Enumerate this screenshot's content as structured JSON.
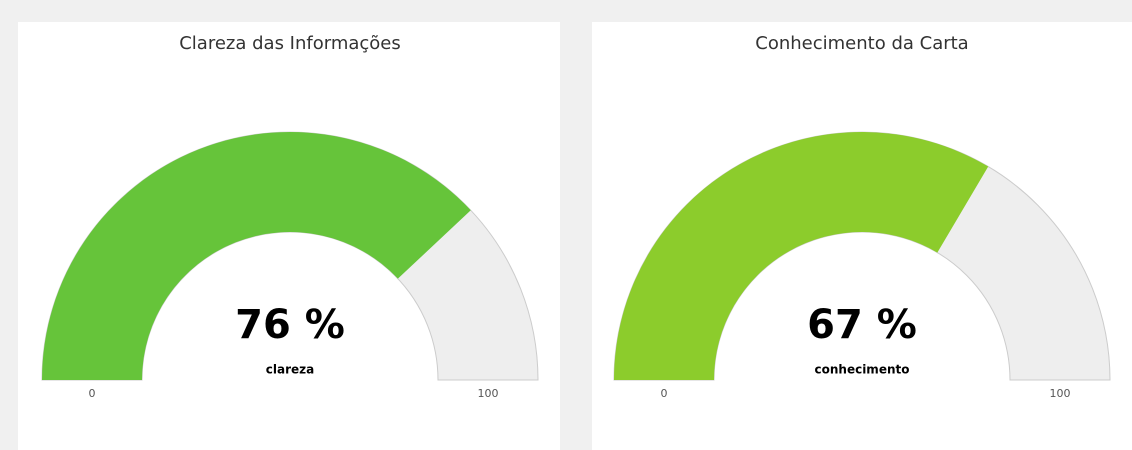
{
  "chart_data": [
    {
      "type": "gauge",
      "title": "Clareza das Informações",
      "values": [
        76
      ],
      "value_labels": [
        "76 %"
      ],
      "label": "clareza",
      "color": "#66c43a",
      "ylim": [
        0,
        100
      ],
      "yticks": [
        0,
        100
      ]
    },
    {
      "type": "gauge",
      "title": "Conhecimento da Carta",
      "values": [
        67
      ],
      "value_labels": [
        "67 %"
      ],
      "label": "conhecimento",
      "color": "#8ccc2c",
      "ylim": [
        0,
        100
      ],
      "yticks": [
        0,
        100
      ]
    }
  ]
}
